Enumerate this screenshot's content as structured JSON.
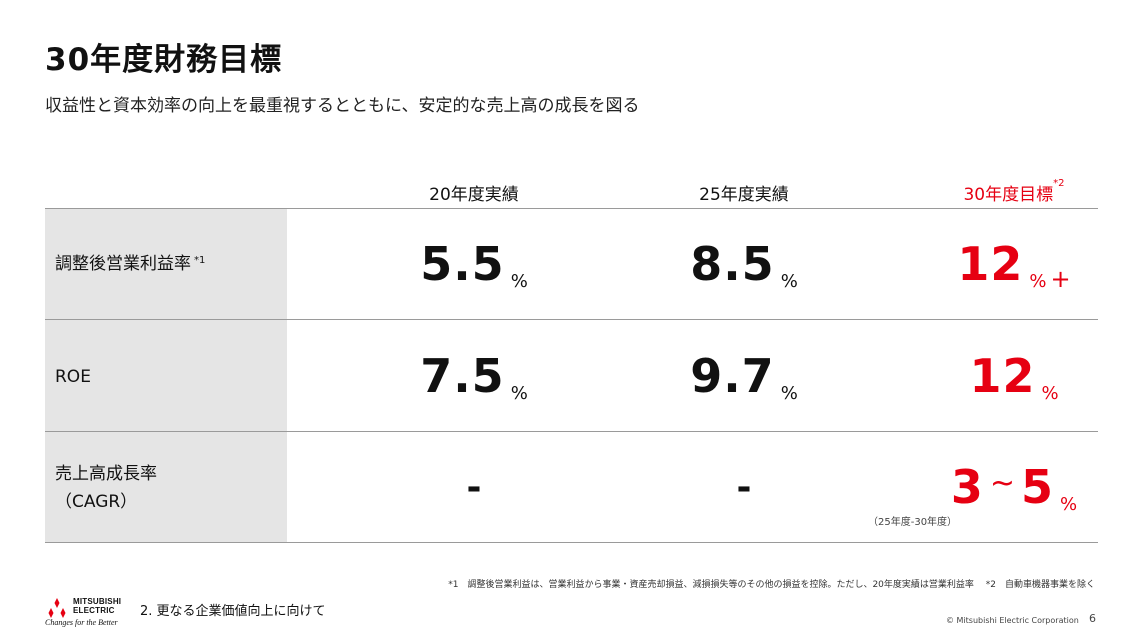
{
  "title": "30年度財務目標",
  "subtitle": "収益性と資本効率の向上を最重視するとともに、安定的な売上高の成長を図る",
  "columns": [
    {
      "label": "20年度実績"
    },
    {
      "label": "25年度実績"
    },
    {
      "label": "30年度目標",
      "note": "*2"
    }
  ],
  "rows": [
    {
      "label": "調整後営業利益率",
      "note": "*1",
      "values": [
        "5.5",
        "8.5",
        "12"
      ],
      "units": [
        "%",
        "%",
        "%"
      ],
      "target_suffix": "+"
    },
    {
      "label": "ROE",
      "values": [
        "7.5",
        "9.7",
        "12"
      ],
      "units": [
        "%",
        "%",
        "%"
      ]
    },
    {
      "label_line1": "売上高成長率",
      "label_line2": "（CAGR）",
      "values": [
        "-",
        "-"
      ],
      "target_from": "3",
      "target_tilde": "~",
      "target_to": "5",
      "target_unit": "%",
      "target_note": "（25年度-30年度）"
    }
  ],
  "footnote": "*1　調整後営業利益は、営業利益から事業・資産売却損益、減損損失等のその他の損益を控除。ただし、20年度実績は営業利益率　 *2　自動車機器事業を除く",
  "footer": {
    "logo_line1": "MITSUBISHI",
    "logo_line2": "ELECTRIC",
    "logo_tagline": "Changes for the Better",
    "section": "2. 更なる企業価値向上に向けて",
    "copyright": "© Mitsubishi Electric Corporation",
    "page_number": "6"
  },
  "colors": {
    "accent": "#e60012",
    "label_bg": "#e5e5e5",
    "rule": "#9a9a9a"
  }
}
